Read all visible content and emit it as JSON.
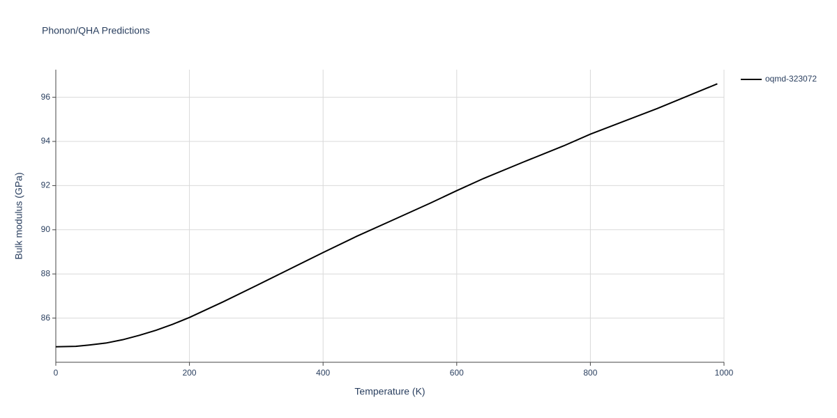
{
  "chart_data": {
    "type": "line",
    "title": "Phonon/QHA Predictions",
    "x_label": "Temperature (K)",
    "y_label": "Bulk modulus (GPa)",
    "x": [
      0,
      30,
      50,
      75,
      100,
      125,
      150,
      175,
      200,
      230,
      250,
      300,
      350,
      400,
      450,
      500,
      560,
      600,
      640,
      700,
      760,
      800,
      900,
      990
    ],
    "series": [
      {
        "name": "oqmd-323072",
        "color": "#000000",
        "values": [
          84.7,
          84.72,
          84.78,
          84.87,
          85.02,
          85.22,
          85.45,
          85.72,
          86.03,
          86.45,
          86.73,
          87.47,
          88.22,
          88.97,
          89.7,
          90.38,
          91.2,
          91.77,
          92.32,
          93.07,
          93.8,
          94.33,
          95.49,
          96.61
        ]
      }
    ],
    "xlim": [
      0,
      1000
    ],
    "xticks": [
      0,
      200,
      400,
      600,
      800,
      1000
    ],
    "ylim": [
      84.0,
      97.25
    ],
    "yticks": [
      86,
      88,
      90,
      92,
      94,
      96
    ],
    "grid": true,
    "legend": "right"
  }
}
